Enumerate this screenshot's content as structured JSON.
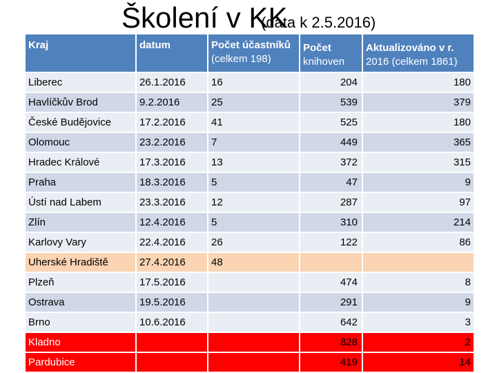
{
  "title": {
    "main": "Školení v KK",
    "sub": "(data k 2.5.2016)"
  },
  "headers": {
    "kraj": "Kraj",
    "datum": "datum",
    "ucastniku_line1": "Počet účastníků",
    "ucastniku_line2": "(celkem 198)",
    "knihoven_line1": "Počet",
    "knihoven_line2": "knihoven",
    "aktualizovano_line1": "Aktualizováno v r.",
    "aktualizovano_line2": "2016 (celkem 1861)"
  },
  "rows": [
    {
      "kraj": "Liberec",
      "datum": "26.1.2016",
      "ucastniku": "16",
      "knihoven": "204",
      "aktualizovano": "180",
      "style": "odd"
    },
    {
      "kraj": "Havlíčkův Brod",
      "datum": "9.2.2016",
      "ucastniku": "25",
      "knihoven": "539",
      "aktualizovano": "379",
      "style": "even"
    },
    {
      "kraj": "České Budějovice",
      "datum": "17.2.2016",
      "ucastniku": "41",
      "knihoven": "525",
      "aktualizovano": "180",
      "style": "odd"
    },
    {
      "kraj": "Olomouc",
      "datum": "23.2.2016",
      "ucastniku": "7",
      "knihoven": "449",
      "aktualizovano": "365",
      "style": "even"
    },
    {
      "kraj": "Hradec Králové",
      "datum": "17.3.2016",
      "ucastniku": "13",
      "knihoven": "372",
      "aktualizovano": "315",
      "style": "odd"
    },
    {
      "kraj": "Praha",
      "datum": "18.3.2016",
      "ucastniku": "5",
      "knihoven": "47",
      "aktualizovano": "9",
      "style": "even"
    },
    {
      "kraj": "Ústí nad Labem",
      "datum": "23.3.2016",
      "ucastniku": "12",
      "knihoven": "287",
      "aktualizovano": "97",
      "style": "odd"
    },
    {
      "kraj": "Zlín",
      "datum": "12.4.2016",
      "ucastniku": "5",
      "knihoven": "310",
      "aktualizovano": "214",
      "style": "even"
    },
    {
      "kraj": "Karlovy Vary",
      "datum": "22.4.2016",
      "ucastniku": "26",
      "knihoven": "122",
      "aktualizovano": "86",
      "style": "odd"
    },
    {
      "kraj": "Uherské Hradiště",
      "datum": "27.4.2016",
      "ucastniku": "48",
      "knihoven": "",
      "aktualizovano": "",
      "style": "orange"
    },
    {
      "kraj": "Plzeň",
      "datum": "17.5.2016",
      "ucastniku": "",
      "knihoven": "474",
      "aktualizovano": "8",
      "style": "odd"
    },
    {
      "kraj": "Ostrava",
      "datum": "19.5.2016",
      "ucastniku": "",
      "knihoven": "291",
      "aktualizovano": "9",
      "style": "even"
    },
    {
      "kraj": "Brno",
      "datum": "10.6.2016",
      "ucastniku": "",
      "knihoven": "642",
      "aktualizovano": "3",
      "style": "odd"
    },
    {
      "kraj": "Kladno",
      "datum": "",
      "ucastniku": "",
      "knihoven": "828",
      "aktualizovano": "2",
      "style": "red"
    },
    {
      "kraj": "Pardubice",
      "datum": "",
      "ucastniku": "",
      "knihoven": "419",
      "aktualizovano": "14",
      "style": "red"
    }
  ],
  "colors": {
    "header": "#4f81bd",
    "row_odd": "#e9edf4",
    "row_even": "#d0d8e8",
    "highlight_orange": "#fbd4b4",
    "highlight_red": "#ff0000"
  }
}
